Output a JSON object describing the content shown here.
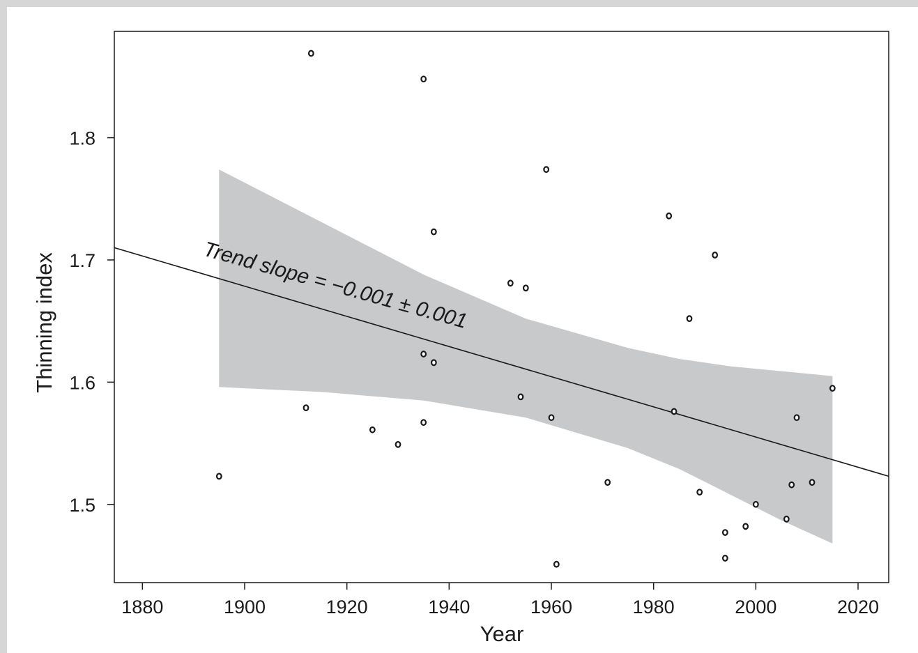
{
  "chart_data": {
    "type": "scatter",
    "xlabel": "Year",
    "ylabel": "Thinning index",
    "xlim": [
      1874.5,
      2026
    ],
    "ylim": [
      1.436,
      1.887
    ],
    "xticks": [
      1880,
      1900,
      1920,
      1940,
      1960,
      1980,
      2000,
      2020
    ],
    "yticks": [
      1.5,
      1.6,
      1.7,
      1.8
    ],
    "xtick_labels": [
      "1880",
      "1900",
      "1920",
      "1940",
      "1960",
      "1980",
      "2000",
      "2020"
    ],
    "ytick_labels": [
      "1.5",
      "1.6",
      "1.7",
      "1.8"
    ],
    "grid": false,
    "annotation": "Trend slope = −0.001 ± 0.001",
    "points": [
      {
        "x": 1895,
        "y": 1.523
      },
      {
        "x": 1912,
        "y": 1.579
      },
      {
        "x": 1913,
        "y": 1.869
      },
      {
        "x": 1925,
        "y": 1.561
      },
      {
        "x": 1930,
        "y": 1.549
      },
      {
        "x": 1935,
        "y": 1.848
      },
      {
        "x": 1935,
        "y": 1.623
      },
      {
        "x": 1935,
        "y": 1.567
      },
      {
        "x": 1937,
        "y": 1.723
      },
      {
        "x": 1937,
        "y": 1.616
      },
      {
        "x": 1952,
        "y": 1.681
      },
      {
        "x": 1954,
        "y": 1.588
      },
      {
        "x": 1955,
        "y": 1.677
      },
      {
        "x": 1959,
        "y": 1.774
      },
      {
        "x": 1960,
        "y": 1.571
      },
      {
        "x": 1961,
        "y": 1.451
      },
      {
        "x": 1971,
        "y": 1.518
      },
      {
        "x": 1983,
        "y": 1.736
      },
      {
        "x": 1984,
        "y": 1.576
      },
      {
        "x": 1987,
        "y": 1.652
      },
      {
        "x": 1989,
        "y": 1.51
      },
      {
        "x": 1992,
        "y": 1.704
      },
      {
        "x": 1994,
        "y": 1.477
      },
      {
        "x": 1994,
        "y": 1.456
      },
      {
        "x": 1998,
        "y": 1.482
      },
      {
        "x": 2000,
        "y": 1.5
      },
      {
        "x": 2006,
        "y": 1.488
      },
      {
        "x": 2007,
        "y": 1.516
      },
      {
        "x": 2008,
        "y": 1.571
      },
      {
        "x": 2011,
        "y": 1.518
      },
      {
        "x": 2015,
        "y": 1.595
      }
    ],
    "trend_line": {
      "x": [
        1874.5,
        2026
      ],
      "y": [
        1.71,
        1.523
      ]
    },
    "confidence_band": {
      "x": [
        1895,
        1915,
        1935,
        1955,
        1975,
        1985,
        1995,
        2005,
        2015
      ],
      "upper": [
        1.774,
        1.731,
        1.688,
        1.652,
        1.628,
        1.619,
        1.613,
        1.609,
        1.605
      ],
      "lower": [
        1.596,
        1.592,
        1.585,
        1.571,
        1.546,
        1.529,
        1.508,
        1.487,
        1.468
      ]
    },
    "colors": {
      "band": "#c8c9cb",
      "line": "#1a1a1a",
      "point": "#1a1a1a",
      "frame": "#d6d6d6"
    }
  }
}
